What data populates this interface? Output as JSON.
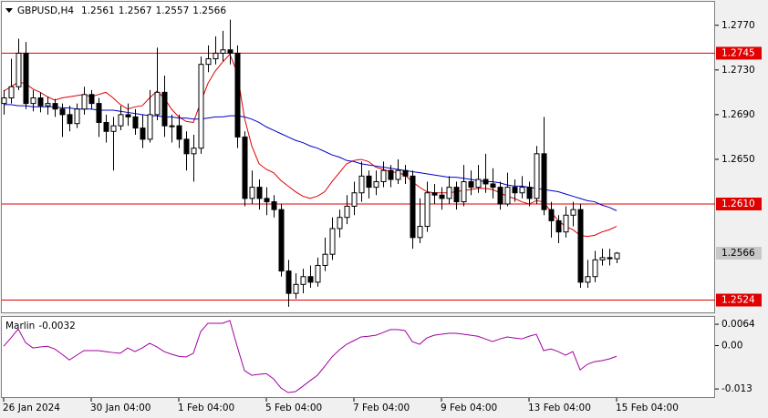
{
  "chart_data": {
    "type": "candlestick",
    "title": "GBPUSD,H4",
    "categories": [
      "26 Jan 2024",
      null,
      null,
      null,
      null,
      null,
      null,
      null,
      null,
      null,
      null,
      null,
      "30 Jan 04:00",
      null,
      null,
      null,
      null,
      null,
      null,
      null,
      null,
      null,
      null,
      null,
      "1 Feb 04:00",
      null,
      null,
      null,
      null,
      null,
      null,
      null,
      null,
      null,
      null,
      null,
      "5 Feb 04:00",
      null,
      null,
      null,
      null,
      null,
      null,
      null,
      null,
      null,
      null,
      null,
      "7 Feb 04:00",
      null,
      null,
      null,
      null,
      null,
      null,
      null,
      null,
      null,
      null,
      null,
      "9 Feb 04:00",
      null,
      null,
      null,
      null,
      null,
      null,
      null,
      null,
      null,
      null,
      null,
      "13 Feb 04:00",
      null,
      null,
      null,
      null,
      null,
      null,
      null,
      null,
      null,
      null,
      null,
      "15 Feb 04:00"
    ],
    "open": [
      1.27,
      1.2705,
      1.2715,
      1.2745,
      1.27,
      1.2705,
      1.2698,
      1.27,
      1.2695,
      1.269,
      1.2682,
      1.2695,
      1.2708,
      1.27,
      1.2683,
      1.2675,
      1.268,
      1.269,
      1.2688,
      1.2678,
      1.2668,
      1.269,
      1.271,
      1.268,
      1.268,
      1.2668,
      1.2655,
      1.266,
      1.2735,
      1.274,
      1.2745,
      1.2748,
      1.2745,
      1.267,
      1.2615,
      1.2625,
      1.2615,
      1.2612,
      1.2605,
      1.255,
      1.253,
      1.2538,
      1.2545,
      1.254,
      1.2555,
      1.2565,
      1.2588,
      1.2598,
      1.2608,
      1.262,
      1.2635,
      1.2625,
      1.263,
      1.264,
      1.2632,
      1.264,
      1.2635,
      1.258,
      1.259,
      1.262,
      1.2618,
      1.2615,
      1.2625,
      1.2612,
      1.263,
      1.2625,
      1.2632,
      1.2628,
      1.2625,
      1.261,
      1.2625,
      1.262,
      1.2625,
      1.2615,
      1.2655,
      1.2605,
      1.2595,
      1.2585,
      1.26,
      1.2605,
      1.254,
      1.2545,
      1.256,
      1.2562,
      1.2561
    ],
    "high": [
      1.2712,
      1.274,
      1.2758,
      1.2755,
      1.2712,
      1.271,
      1.2706,
      1.2704,
      1.27,
      1.2698,
      1.27,
      1.2715,
      1.2712,
      1.2705,
      1.269,
      1.2688,
      1.2698,
      1.27,
      1.2695,
      1.269,
      1.2712,
      1.275,
      1.2725,
      1.269,
      1.269,
      1.2675,
      1.2672,
      1.2742,
      1.2752,
      1.276,
      1.2765,
      1.2775,
      1.2752,
      1.2675,
      1.264,
      1.2632,
      1.2625,
      1.2618,
      1.261,
      1.256,
      1.2548,
      1.2552,
      1.2555,
      1.2562,
      1.258,
      1.2598,
      1.2605,
      1.2618,
      1.263,
      1.2648,
      1.264,
      1.264,
      1.2648,
      1.2645,
      1.265,
      1.2645,
      1.264,
      1.2615,
      1.263,
      1.2628,
      1.2625,
      1.2635,
      1.263,
      1.2645,
      1.264,
      1.2645,
      1.2655,
      1.2642,
      1.263,
      1.2638,
      1.2632,
      1.2635,
      1.263,
      1.2662,
      1.2688,
      1.2612,
      1.26,
      1.2608,
      1.2612,
      1.261,
      1.256,
      1.2568,
      1.257,
      1.257,
      1.2567
    ],
    "low": [
      1.269,
      1.27,
      1.2712,
      1.2695,
      1.2693,
      1.2692,
      1.269,
      1.2688,
      1.267,
      1.2675,
      1.2678,
      1.269,
      1.2695,
      1.267,
      1.2665,
      1.264,
      1.2676,
      1.268,
      1.2672,
      1.266,
      1.2665,
      1.2685,
      1.267,
      1.2665,
      1.266,
      1.264,
      1.263,
      1.2655,
      1.2728,
      1.2735,
      1.2738,
      1.2735,
      1.266,
      1.2608,
      1.261,
      1.2605,
      1.26,
      1.2598,
      1.2545,
      1.2518,
      1.2525,
      1.253,
      1.2535,
      1.2536,
      1.255,
      1.256,
      1.258,
      1.2592,
      1.26,
      1.2612,
      1.2615,
      1.2618,
      1.2625,
      1.2625,
      1.2628,
      1.2628,
      1.257,
      1.2575,
      1.2585,
      1.261,
      1.2605,
      1.261,
      1.2605,
      1.2608,
      1.2618,
      1.262,
      1.262,
      1.2615,
      1.2605,
      1.2608,
      1.2612,
      1.2615,
      1.2608,
      1.261,
      1.26,
      1.258,
      1.2575,
      1.258,
      1.259,
      1.2535,
      1.2535,
      1.254,
      1.2555,
      1.2555,
      1.2557
    ],
    "close": [
      1.2705,
      1.2715,
      1.2745,
      1.27,
      1.2705,
      1.2698,
      1.27,
      1.2695,
      1.269,
      1.2682,
      1.2695,
      1.2708,
      1.27,
      1.2683,
      1.2675,
      1.268,
      1.269,
      1.2688,
      1.2678,
      1.2668,
      1.269,
      1.271,
      1.268,
      1.268,
      1.2668,
      1.2655,
      1.266,
      1.2735,
      1.274,
      1.2745,
      1.2748,
      1.2745,
      1.267,
      1.2615,
      1.2625,
      1.2615,
      1.2612,
      1.2605,
      1.255,
      1.253,
      1.2538,
      1.2545,
      1.254,
      1.2555,
      1.2565,
      1.2588,
      1.2598,
      1.2608,
      1.262,
      1.2635,
      1.2625,
      1.263,
      1.264,
      1.2632,
      1.264,
      1.2635,
      1.258,
      1.259,
      1.262,
      1.2618,
      1.2615,
      1.2625,
      1.2612,
      1.263,
      1.2625,
      1.2632,
      1.2628,
      1.2625,
      1.261,
      1.2625,
      1.262,
      1.2625,
      1.2615,
      1.2655,
      1.2605,
      1.2595,
      1.2585,
      1.26,
      1.2605,
      1.254,
      1.2545,
      1.256,
      1.2562,
      1.2561,
      1.2566
    ],
    "up_color": "#ffffff",
    "down_color": "#000000",
    "lines": [
      {
        "color": "#e00000",
        "values": [
          1.2711,
          1.2715,
          1.2719,
          1.2718,
          1.2713,
          1.271,
          1.2706,
          1.2703,
          1.2705,
          1.2706,
          1.2707,
          1.2708,
          1.2706,
          1.2708,
          1.271,
          1.2705,
          1.2699,
          1.2695,
          1.2697,
          1.2698,
          1.2705,
          1.2711,
          1.2705,
          1.2695,
          1.2688,
          1.2684,
          1.2683,
          1.2701,
          1.2718,
          1.2729,
          1.2737,
          1.2744,
          1.2728,
          1.2687,
          1.2662,
          1.2646,
          1.2641,
          1.2638,
          1.2631,
          1.2626,
          1.2621,
          1.2617,
          1.2615,
          1.2617,
          1.2621,
          1.263,
          1.2638,
          1.2646,
          1.2649,
          1.265,
          1.2648,
          1.2643,
          1.2641,
          1.2639,
          1.2638,
          1.2636,
          1.263,
          1.2625,
          1.2621,
          1.262,
          1.262,
          1.262,
          1.2621,
          1.2622,
          1.2623,
          1.2624,
          1.2624,
          1.2623,
          1.262,
          1.2617,
          1.2615,
          1.2612,
          1.261,
          1.2613,
          1.2612,
          1.2603,
          1.2595,
          1.259,
          1.2587,
          1.2582,
          1.2581,
          1.2582,
          1.2585,
          1.2587,
          1.259
        ]
      },
      {
        "color": "#0000cc",
        "values": [
          1.2699,
          1.2699,
          1.2698,
          1.2698,
          1.2697,
          1.2697,
          1.2697,
          1.2697,
          1.2696,
          1.2696,
          1.2695,
          1.2695,
          1.2695,
          1.2694,
          1.2694,
          1.2694,
          1.2693,
          1.2692,
          1.2691,
          1.269,
          1.2689,
          1.2689,
          1.2688,
          1.2688,
          1.2687,
          1.2687,
          1.2686,
          1.2686,
          1.2687,
          1.2688,
          1.2688,
          1.2689,
          1.2689,
          1.2688,
          1.2686,
          1.2683,
          1.2679,
          1.2676,
          1.2673,
          1.267,
          1.2667,
          1.2665,
          1.2662,
          1.266,
          1.2657,
          1.2654,
          1.2652,
          1.2649,
          1.2648,
          1.2646,
          1.2645,
          1.2644,
          1.2643,
          1.2642,
          1.2641,
          1.264,
          1.2639,
          1.2638,
          1.2637,
          1.2636,
          1.2635,
          1.2634,
          1.2634,
          1.2633,
          1.2632,
          1.2631,
          1.263,
          1.263,
          1.2629,
          1.2627,
          1.2626,
          1.2626,
          1.2625,
          1.2624,
          1.2623,
          1.2622,
          1.2621,
          1.2619,
          1.2617,
          1.2615,
          1.2613,
          1.2612,
          1.2609,
          1.2607,
          1.2604
        ]
      }
    ],
    "levels": [
      {
        "value": 1.2745,
        "label": "1.2745"
      },
      {
        "value": 1.261,
        "label": "1.2610"
      },
      {
        "value": 1.2524,
        "label": "1.2524"
      }
    ],
    "level_color": "#e00000",
    "ylim": [
      1.2513,
      1.2791
    ],
    "yticks": [
      {
        "value": 1.277,
        "label": "1.2770"
      },
      {
        "value": 1.273,
        "label": "1.2730"
      },
      {
        "value": 1.269,
        "label": "1.2690"
      },
      {
        "value": 1.265,
        "label": "1.2650"
      }
    ],
    "indicator": {
      "name": "Marlin",
      "color": "#a000a0",
      "values": [
        -0.0002,
        0.0023,
        0.005,
        0.0009,
        -0.0007,
        -0.0004,
        -0.0002,
        -0.001,
        -0.0026,
        -0.0043,
        -0.0029,
        -0.0015,
        -0.0015,
        -0.0015,
        -0.0018,
        -0.0021,
        -0.0023,
        -0.0007,
        -0.0018,
        -0.0007,
        0.0007,
        -0.0004,
        -0.0018,
        -0.0026,
        -0.0032,
        -0.0034,
        -0.0023,
        0.0042,
        0.0067,
        0.0067,
        0.0067,
        0.0075,
        -0.0002,
        -0.0075,
        -0.0089,
        -0.0086,
        -0.0084,
        -0.01,
        -0.0127,
        -0.0141,
        -0.0138,
        -0.0122,
        -0.0105,
        -0.0089,
        -0.0062,
        -0.0034,
        -0.0013,
        0.0004,
        0.0015,
        0.0026,
        0.0028,
        0.0031,
        0.0039,
        0.0048,
        0.0048,
        0.0045,
        0.0012,
        0.0004,
        0.0023,
        0.0031,
        0.0034,
        0.0037,
        0.0037,
        0.0034,
        0.0031,
        0.0028,
        0.002,
        0.0012,
        0.002,
        0.0026,
        0.0023,
        0.002,
        0.0028,
        0.0034,
        -0.0015,
        -0.001,
        -0.0018,
        -0.0029,
        -0.0018,
        -0.0073,
        -0.0056,
        -0.0048,
        -0.0045,
        -0.004,
        -0.0032
      ],
      "ylim": [
        -0.0157,
        0.0086
      ],
      "yticks": [
        0.0064,
        {
          "value": 0,
          "label": "0.00"
        },
        -0.013
      ]
    }
  }
}
